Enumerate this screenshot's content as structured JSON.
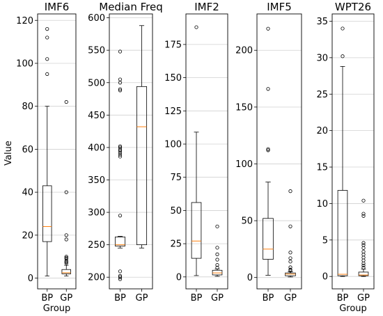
{
  "figure": {
    "ylabel": "Value"
  },
  "chart_data": [
    {
      "type": "box",
      "title": "IMF6",
      "xlabel": "Group",
      "categories": [
        "BP",
        "GP"
      ],
      "ylim": [
        -5,
        123
      ],
      "yticks": [
        0,
        20,
        40,
        60,
        80,
        100,
        120
      ],
      "grid": true,
      "boxes": [
        {
          "name": "BP",
          "whislo": 1,
          "q1": 17,
          "med": 24,
          "q3": 43,
          "whishi": 80,
          "fliers": [
            95,
            102,
            112,
            116
          ]
        },
        {
          "name": "GP",
          "whislo": 1,
          "q1": 2,
          "med": 2.5,
          "q3": 4,
          "whishi": 6,
          "fliers": [
            7,
            7.5,
            8,
            9,
            9.5,
            10,
            18,
            20,
            40,
            82
          ]
        }
      ]
    },
    {
      "type": "box",
      "title": "Median Freq",
      "xlabel": "",
      "categories": [
        "BP",
        "GP"
      ],
      "ylim": [
        182,
        606
      ],
      "yticks": [
        200,
        250,
        300,
        350,
        400,
        450,
        500,
        550,
        600
      ],
      "grid": true,
      "boxes": [
        {
          "name": "BP",
          "whislo": 245,
          "q1": 248,
          "med": 250,
          "q3": 262,
          "whishi": 263,
          "fliers": [
            197,
            200,
            202,
            209,
            295,
            386,
            389,
            392,
            395,
            397,
            400,
            402,
            488,
            490,
            500,
            505,
            548
          ]
        },
        {
          "name": "GP",
          "whislo": 245,
          "q1": 250,
          "med": 432,
          "q3": 494,
          "whishi": 588,
          "fliers": []
        }
      ]
    },
    {
      "type": "box",
      "title": "IMF2",
      "xlabel": "",
      "categories": [
        "BP",
        "GP"
      ],
      "ylim": [
        -9,
        198
      ],
      "yticks": [
        0,
        25,
        50,
        75,
        100,
        125,
        150,
        175
      ],
      "grid": true,
      "boxes": [
        {
          "name": "BP",
          "whislo": 1,
          "q1": 14,
          "med": 27,
          "q3": 56,
          "whishi": 109,
          "fliers": [
            188
          ]
        },
        {
          "name": "GP",
          "whislo": 0.5,
          "q1": 1.5,
          "med": 3,
          "q3": 5,
          "whishi": 6,
          "fliers": [
            7,
            9,
            13,
            17,
            22,
            38
          ]
        }
      ]
    },
    {
      "type": "box",
      "title": "IMF5",
      "xlabel": "",
      "categories": [
        "BP",
        "GP"
      ],
      "ylim": [
        -10,
        232
      ],
      "yticks": [
        0,
        50,
        100,
        150,
        200
      ],
      "grid": true,
      "boxes": [
        {
          "name": "BP",
          "whislo": 2,
          "q1": 16,
          "med": 25,
          "q3": 52,
          "whishi": 84,
          "fliers": [
            112,
            113,
            166,
            219
          ]
        },
        {
          "name": "GP",
          "whislo": 0.5,
          "q1": 1.5,
          "med": 3,
          "q3": 4,
          "whishi": 5,
          "fliers": [
            6,
            7,
            9,
            14,
            17,
            22,
            45,
            76
          ]
        }
      ]
    },
    {
      "type": "box",
      "title": "WPT26",
      "xlabel": "Group",
      "categories": [
        "BP",
        "GP"
      ],
      "ylim": [
        -1.7,
        36
      ],
      "yticks": [
        0,
        5,
        10,
        15,
        20,
        25,
        30,
        35
      ],
      "grid": true,
      "boxes": [
        {
          "name": "BP",
          "whislo": 0,
          "q1": 0.1,
          "med": 0.3,
          "q3": 11.8,
          "whishi": 28.8,
          "fliers": [
            30.2,
            34
          ]
        },
        {
          "name": "GP",
          "whislo": 0,
          "q1": 0.1,
          "med": 0.2,
          "q3": 0.6,
          "whishi": 1,
          "fliers": [
            1.2,
            1.5,
            1.8,
            2.2,
            2.6,
            3,
            3.4,
            3.9,
            4.3,
            4.6,
            8.3,
            8.6,
            10.4
          ]
        }
      ]
    }
  ]
}
